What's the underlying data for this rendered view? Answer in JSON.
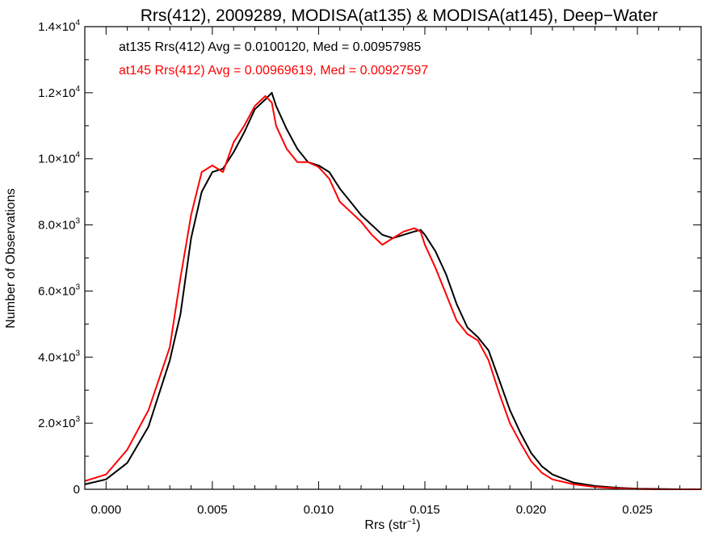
{
  "chart_data": {
    "type": "line",
    "title": "Rrs(412), 2009289, MODISA(at135) & MODISA(at145), Deep−Water",
    "xlabel": "Rrs (str",
    "xlabel_sup": "−1",
    "xlabel_suffix": ")",
    "ylabel": "Number of Observations",
    "xlim": [
      -0.001,
      0.028
    ],
    "ylim": [
      0,
      14000
    ],
    "x_ticks": [
      {
        "value": 0.0,
        "label": "0.000"
      },
      {
        "value": 0.005,
        "label": "0.005"
      },
      {
        "value": 0.01,
        "label": "0.010"
      },
      {
        "value": 0.015,
        "label": "0.015"
      },
      {
        "value": 0.02,
        "label": "0.020"
      },
      {
        "value": 0.025,
        "label": "0.025"
      }
    ],
    "y_ticks": [
      {
        "value": 0,
        "mant": "0",
        "exp": ""
      },
      {
        "value": 2000,
        "mant": "2.0×10",
        "exp": "3"
      },
      {
        "value": 4000,
        "mant": "4.0×10",
        "exp": "3"
      },
      {
        "value": 6000,
        "mant": "6.0×10",
        "exp": "3"
      },
      {
        "value": 8000,
        "mant": "8.0×10",
        "exp": "3"
      },
      {
        "value": 10000,
        "mant": "1.0×10",
        "exp": "4"
      },
      {
        "value": 12000,
        "mant": "1.2×10",
        "exp": "4"
      },
      {
        "value": 14000,
        "mant": "1.4×10",
        "exp": "4"
      }
    ],
    "grid": false,
    "series": [
      {
        "legend": "at135 Rrs(412) Avg = 0.0100120, Med = 0.00957985",
        "color": "#000000",
        "x": [
          -0.001,
          0.0,
          0.001,
          0.002,
          0.003,
          0.0035,
          0.004,
          0.0045,
          0.005,
          0.0055,
          0.006,
          0.0065,
          0.007,
          0.0075,
          0.0078,
          0.008,
          0.0085,
          0.009,
          0.0095,
          0.01,
          0.0105,
          0.011,
          0.0115,
          0.012,
          0.0125,
          0.013,
          0.0135,
          0.014,
          0.0145,
          0.0148,
          0.015,
          0.0155,
          0.016,
          0.0165,
          0.017,
          0.0175,
          0.018,
          0.0185,
          0.019,
          0.0195,
          0.02,
          0.0205,
          0.021,
          0.022,
          0.023,
          0.024,
          0.025,
          0.026,
          0.027,
          0.028
        ],
        "y": [
          150,
          300,
          800,
          1900,
          3900,
          5300,
          7600,
          9000,
          9600,
          9700,
          10200,
          10800,
          11500,
          11800,
          12000,
          11600,
          10900,
          10300,
          9900,
          9800,
          9600,
          9100,
          8700,
          8300,
          8000,
          7700,
          7600,
          7700,
          7800,
          7850,
          7700,
          7200,
          6500,
          5600,
          4900,
          4600,
          4200,
          3300,
          2400,
          1700,
          1100,
          700,
          450,
          200,
          100,
          50,
          20,
          10,
          0,
          0
        ]
      },
      {
        "legend": "at145 Rrs(412) Avg = 0.00969619, Med = 0.00927597",
        "color": "#ff0000",
        "x": [
          -0.001,
          0.0,
          0.001,
          0.002,
          0.003,
          0.0035,
          0.004,
          0.0045,
          0.005,
          0.0055,
          0.006,
          0.0065,
          0.007,
          0.0075,
          0.0078,
          0.008,
          0.0085,
          0.009,
          0.0095,
          0.01,
          0.0105,
          0.011,
          0.0115,
          0.012,
          0.0125,
          0.013,
          0.0135,
          0.014,
          0.0145,
          0.0148,
          0.015,
          0.0155,
          0.016,
          0.0165,
          0.017,
          0.0175,
          0.018,
          0.0185,
          0.019,
          0.0195,
          0.02,
          0.0205,
          0.021,
          0.022,
          0.023,
          0.024,
          0.025,
          0.026,
          0.027,
          0.028
        ],
        "y": [
          250,
          450,
          1200,
          2400,
          4300,
          6400,
          8300,
          9600,
          9800,
          9600,
          10500,
          11000,
          11600,
          11900,
          11700,
          11000,
          10300,
          9900,
          9900,
          9750,
          9400,
          8700,
          8400,
          8100,
          7700,
          7400,
          7600,
          7800,
          7900,
          7800,
          7400,
          6700,
          5900,
          5100,
          4700,
          4500,
          3900,
          2900,
          2000,
          1400,
          850,
          500,
          300,
          150,
          70,
          30,
          10,
          0,
          0,
          0
        ]
      }
    ]
  }
}
